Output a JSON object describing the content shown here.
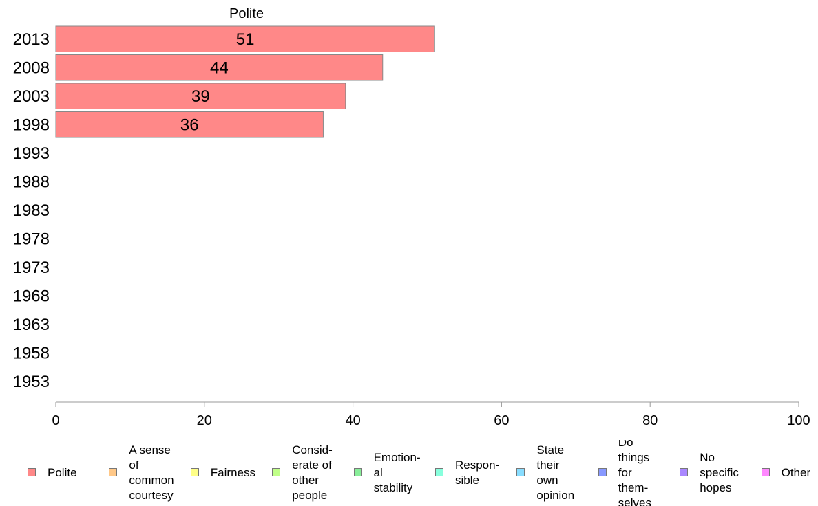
{
  "chart_data": {
    "type": "bar",
    "orientation": "horizontal",
    "title": "Polite",
    "categories": [
      "2013",
      "2008",
      "2003",
      "1998",
      "1993",
      "1988",
      "1983",
      "1978",
      "1973",
      "1968",
      "1963",
      "1958",
      "1953"
    ],
    "series": [
      {
        "name": "Polite",
        "color": "#ff8888",
        "values": [
          51,
          44,
          39,
          36,
          null,
          null,
          null,
          null,
          null,
          null,
          null,
          null,
          null
        ]
      }
    ],
    "data_labels": [
      "51",
      "44",
      "39",
      "36",
      "",
      "",
      "",
      "",
      "",
      "",
      "",
      "",
      ""
    ],
    "xlim": [
      0,
      100
    ],
    "xticks": [
      "0",
      "20",
      "40",
      "60",
      "80",
      "100"
    ],
    "grid": false,
    "legend_position": "bottom"
  },
  "legend": [
    {
      "label": "Polite",
      "color": "#ff8888"
    },
    {
      "label": "A sense\nof\ncommon\ncourtesy",
      "color": "#ffc888"
    },
    {
      "label": "Fairness",
      "color": "#ffff88"
    },
    {
      "label": "Consid-\nerate of\nother\npeople",
      "color": "#c0ff88"
    },
    {
      "label": "Emotion-\nal\nstability",
      "color": "#88ee99"
    },
    {
      "label": "Respon-\nsible",
      "color": "#88ffdd"
    },
    {
      "label": "State\ntheir\nown\nopinion",
      "color": "#88ddff"
    },
    {
      "label": "Do\nthings\nfor\nthem-\nselves",
      "color": "#8899ff"
    },
    {
      "label": "No\nspecific\nhopes",
      "color": "#aa88ff"
    },
    {
      "label": "Other",
      "color": "#ff88ff"
    }
  ]
}
